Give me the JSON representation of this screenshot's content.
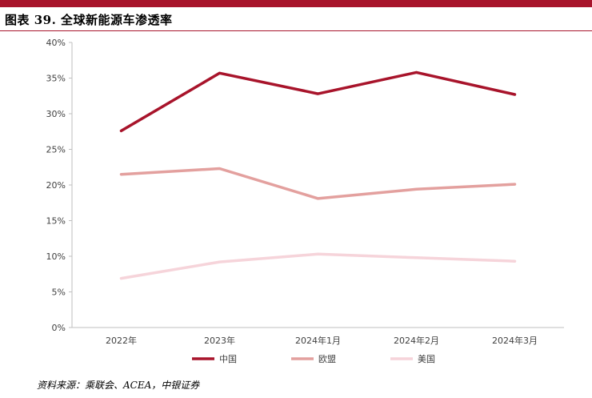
{
  "figure": {
    "title": "图表 39.  全球新能源车渗透率",
    "source": "资料来源：乘联会、ACEA，中银证券"
  },
  "chart_data": {
    "type": "line",
    "title": "",
    "xlabel": "",
    "ylabel": "",
    "categories": [
      "2022年",
      "2023年",
      "2024年1月",
      "2024年2月",
      "2024年3月"
    ],
    "ylim": [
      0,
      40
    ],
    "yticks": [
      "0%",
      "5%",
      "10%",
      "15%",
      "20%",
      "25%",
      "30%",
      "35%",
      "40%"
    ],
    "grid": false,
    "legend": "bottom",
    "series": [
      {
        "name": "中国",
        "color": "#a8142b",
        "values": [
          27.6,
          35.7,
          32.8,
          35.8,
          32.7
        ]
      },
      {
        "name": "欧盟",
        "color": "#e3a09e",
        "values": [
          21.5,
          22.3,
          18.1,
          19.4,
          20.1
        ]
      },
      {
        "name": "美国",
        "color": "#f6d4da",
        "values": [
          6.9,
          9.2,
          10.3,
          9.8,
          9.3
        ]
      }
    ]
  }
}
